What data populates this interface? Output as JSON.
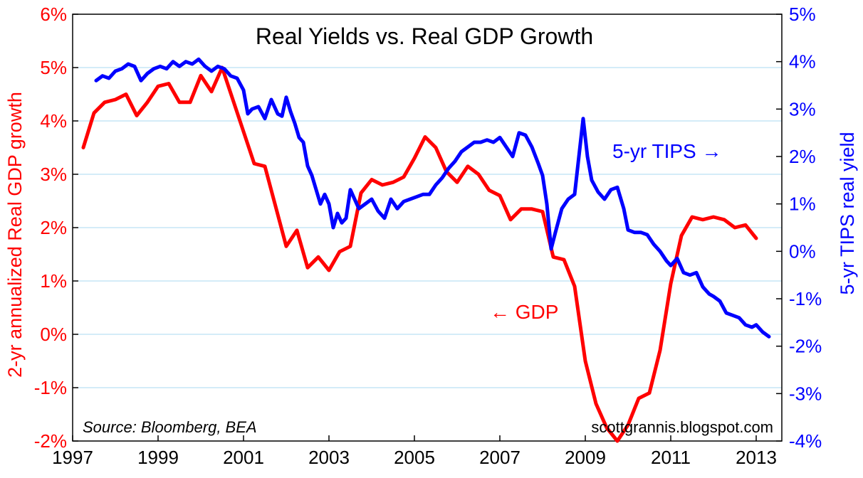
{
  "chart_data": {
    "type": "line",
    "title": "Real Yields vs. Real GDP Growth",
    "source": "Source: Bloomberg, BEA",
    "credit": "scottgrannis.blogspot.com",
    "left_axis": {
      "label": "2-yr annualized Real GDP growth",
      "range": [
        -2,
        6
      ],
      "ticks": [
        -2,
        -1,
        0,
        1,
        2,
        3,
        4,
        5,
        6
      ],
      "tick_labels": [
        "-2%",
        "-1%",
        "0%",
        "1%",
        "2%",
        "3%",
        "4%",
        "5%",
        "6%"
      ],
      "color": "#ff0000"
    },
    "right_axis": {
      "label": "5-yr TIPS real yield",
      "range": [
        -4,
        5
      ],
      "ticks": [
        -4,
        -3,
        -2,
        -1,
        0,
        1,
        2,
        3,
        4,
        5
      ],
      "tick_labels": [
        "-4%",
        "-3%",
        "-2%",
        "-1%",
        "0%",
        "1%",
        "2%",
        "3%",
        "4%",
        "5%"
      ],
      "color": "#0000ff"
    },
    "x_axis": {
      "range": [
        1997,
        2013.6
      ],
      "ticks": [
        1997,
        1999,
        2001,
        2003,
        2005,
        2007,
        2009,
        2011,
        2013
      ],
      "tick_labels": [
        "1997",
        "1999",
        "2001",
        "2003",
        "2005",
        "2007",
        "2009",
        "2011",
        "2013"
      ]
    },
    "grid": true,
    "series": [
      {
        "name": "GDP",
        "axis": "left",
        "color": "#ff0000",
        "annotation": "← GDP",
        "x": [
          1997.25,
          1997.5,
          1997.75,
          1998.0,
          1998.25,
          1998.5,
          1998.75,
          1999.0,
          1999.25,
          1999.5,
          1999.75,
          2000.0,
          2000.25,
          2000.5,
          2000.75,
          2001.0,
          2001.25,
          2001.5,
          2001.75,
          2002.0,
          2002.25,
          2002.5,
          2002.75,
          2003.0,
          2003.25,
          2003.5,
          2003.75,
          2004.0,
          2004.25,
          2004.5,
          2004.75,
          2005.0,
          2005.25,
          2005.5,
          2005.75,
          2006.0,
          2006.25,
          2006.5,
          2006.75,
          2007.0,
          2007.25,
          2007.5,
          2007.75,
          2008.0,
          2008.25,
          2008.5,
          2008.75,
          2009.0,
          2009.25,
          2009.5,
          2009.75,
          2010.0,
          2010.25,
          2010.5,
          2010.75,
          2011.0,
          2011.25,
          2011.5,
          2011.75,
          2012.0,
          2012.25,
          2012.5,
          2012.75,
          2013.0
        ],
        "values": [
          3.5,
          4.15,
          4.35,
          4.4,
          4.5,
          4.1,
          4.35,
          4.65,
          4.7,
          4.35,
          4.35,
          4.85,
          4.55,
          5.0,
          4.4,
          3.8,
          3.2,
          3.15,
          2.4,
          1.65,
          1.95,
          1.25,
          1.45,
          1.2,
          1.55,
          1.65,
          2.65,
          2.9,
          2.8,
          2.85,
          2.95,
          3.3,
          3.7,
          3.5,
          3.05,
          2.85,
          3.15,
          3.0,
          2.7,
          2.6,
          2.15,
          2.35,
          2.35,
          2.3,
          1.45,
          1.4,
          0.9,
          -0.5,
          -1.3,
          -1.75,
          -2.0,
          -1.7,
          -1.2,
          -1.1,
          -0.3,
          0.95,
          1.85,
          2.2,
          2.15,
          2.2,
          2.15,
          2.0,
          2.05,
          1.8
        ]
      },
      {
        "name": "5-yr TIPS",
        "axis": "right",
        "color": "#0000ff",
        "annotation": "5-yr TIPS →",
        "x": [
          1997.55,
          1997.7,
          1997.85,
          1998.0,
          1998.15,
          1998.3,
          1998.45,
          1998.6,
          1998.75,
          1998.9,
          1999.05,
          1999.2,
          1999.35,
          1999.5,
          1999.65,
          1999.8,
          1999.95,
          2000.1,
          2000.25,
          2000.4,
          2000.55,
          2000.7,
          2000.85,
          2001.0,
          2001.1,
          2001.2,
          2001.35,
          2001.5,
          2001.65,
          2001.8,
          2001.9,
          2002.0,
          2002.1,
          2002.2,
          2002.3,
          2002.4,
          2002.5,
          2002.6,
          2002.7,
          2002.8,
          2002.9,
          2003.0,
          2003.1,
          2003.2,
          2003.3,
          2003.4,
          2003.5,
          2003.6,
          2003.7,
          2003.85,
          2004.0,
          2004.15,
          2004.3,
          2004.45,
          2004.6,
          2004.75,
          2004.9,
          2005.05,
          2005.2,
          2005.35,
          2005.5,
          2005.65,
          2005.8,
          2005.95,
          2006.1,
          2006.25,
          2006.4,
          2006.55,
          2006.7,
          2006.85,
          2007.0,
          2007.15,
          2007.3,
          2007.45,
          2007.6,
          2007.75,
          2007.9,
          2008.0,
          2008.1,
          2008.2,
          2008.3,
          2008.45,
          2008.6,
          2008.75,
          2008.85,
          2008.95,
          2009.05,
          2009.15,
          2009.3,
          2009.45,
          2009.6,
          2009.75,
          2009.9,
          2010.0,
          2010.15,
          2010.3,
          2010.45,
          2010.6,
          2010.75,
          2010.9,
          2011.0,
          2011.15,
          2011.3,
          2011.45,
          2011.6,
          2011.75,
          2011.9,
          2012.0,
          2012.15,
          2012.3,
          2012.45,
          2012.6,
          2012.75,
          2012.9,
          2013.0,
          2013.15,
          2013.3
        ],
        "values": [
          3.6,
          3.7,
          3.65,
          3.8,
          3.85,
          3.95,
          3.9,
          3.6,
          3.75,
          3.85,
          3.9,
          3.85,
          4.0,
          3.9,
          4.0,
          3.95,
          4.05,
          3.9,
          3.8,
          3.9,
          3.85,
          3.7,
          3.65,
          3.4,
          2.9,
          3.0,
          3.05,
          2.8,
          3.2,
          2.9,
          2.85,
          3.25,
          2.95,
          2.7,
          2.4,
          2.3,
          1.8,
          1.6,
          1.3,
          1.0,
          1.2,
          1.0,
          0.5,
          0.8,
          0.6,
          0.7,
          1.3,
          1.1,
          0.9,
          1.0,
          1.1,
          0.85,
          0.7,
          1.1,
          0.9,
          1.05,
          1.1,
          1.15,
          1.2,
          1.2,
          1.4,
          1.55,
          1.75,
          1.9,
          2.1,
          2.2,
          2.3,
          2.3,
          2.35,
          2.3,
          2.4,
          2.2,
          2.0,
          2.5,
          2.45,
          2.2,
          1.85,
          1.6,
          1.0,
          0.05,
          0.4,
          0.9,
          1.1,
          1.2,
          2.0,
          2.8,
          2.0,
          1.5,
          1.25,
          1.1,
          1.3,
          1.35,
          0.9,
          0.45,
          0.4,
          0.4,
          0.35,
          0.15,
          0.0,
          -0.2,
          -0.3,
          -0.15,
          -0.45,
          -0.5,
          -0.45,
          -0.75,
          -0.9,
          -0.95,
          -1.05,
          -1.3,
          -1.35,
          -1.4,
          -1.55,
          -1.6,
          -1.55,
          -1.7,
          -1.8
        ]
      }
    ]
  }
}
